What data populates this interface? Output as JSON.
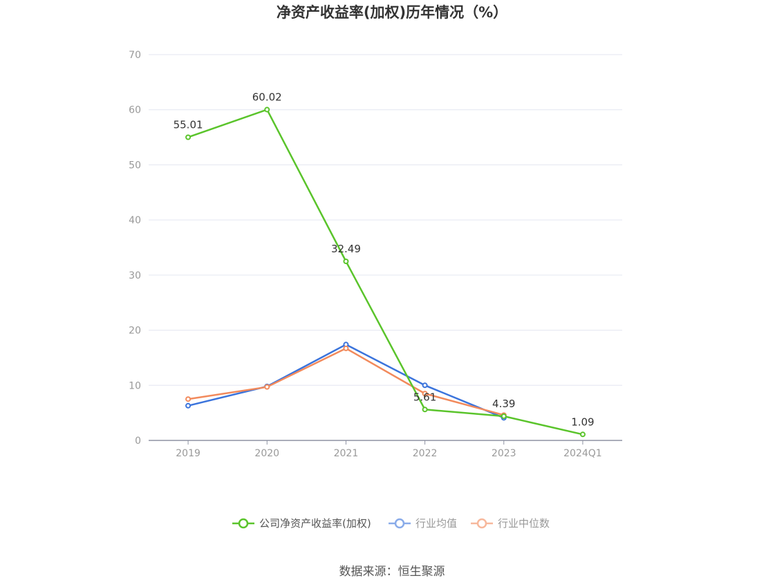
{
  "chart_data": {
    "type": "line",
    "title": "净资产收益率(加权)历年情况（%）",
    "categories": [
      "2019",
      "2020",
      "2021",
      "2022",
      "2023",
      "2024Q1"
    ],
    "ylim": [
      0,
      70
    ],
    "yticks": [
      0,
      10,
      20,
      30,
      40,
      50,
      60,
      70
    ],
    "grid": true,
    "legend_position": "bottom",
    "series": [
      {
        "name": "公司净资产收益率(加权)",
        "color": "#5ac42b",
        "values": [
          55.01,
          60.02,
          32.49,
          5.61,
          4.39,
          1.09
        ],
        "labels": [
          "55.01",
          "60.02",
          "32.49",
          "5.61",
          "4.39",
          "1.09"
        ]
      },
      {
        "name": "行业均值",
        "color": "#3b74dc",
        "values": [
          6.3,
          9.8,
          17.4,
          10.0,
          4.1,
          null
        ]
      },
      {
        "name": "行业中位数",
        "color": "#f28a5c",
        "values": [
          7.5,
          9.7,
          16.7,
          8.5,
          4.6,
          null
        ]
      }
    ],
    "source": "数据来源：恒生聚源"
  }
}
